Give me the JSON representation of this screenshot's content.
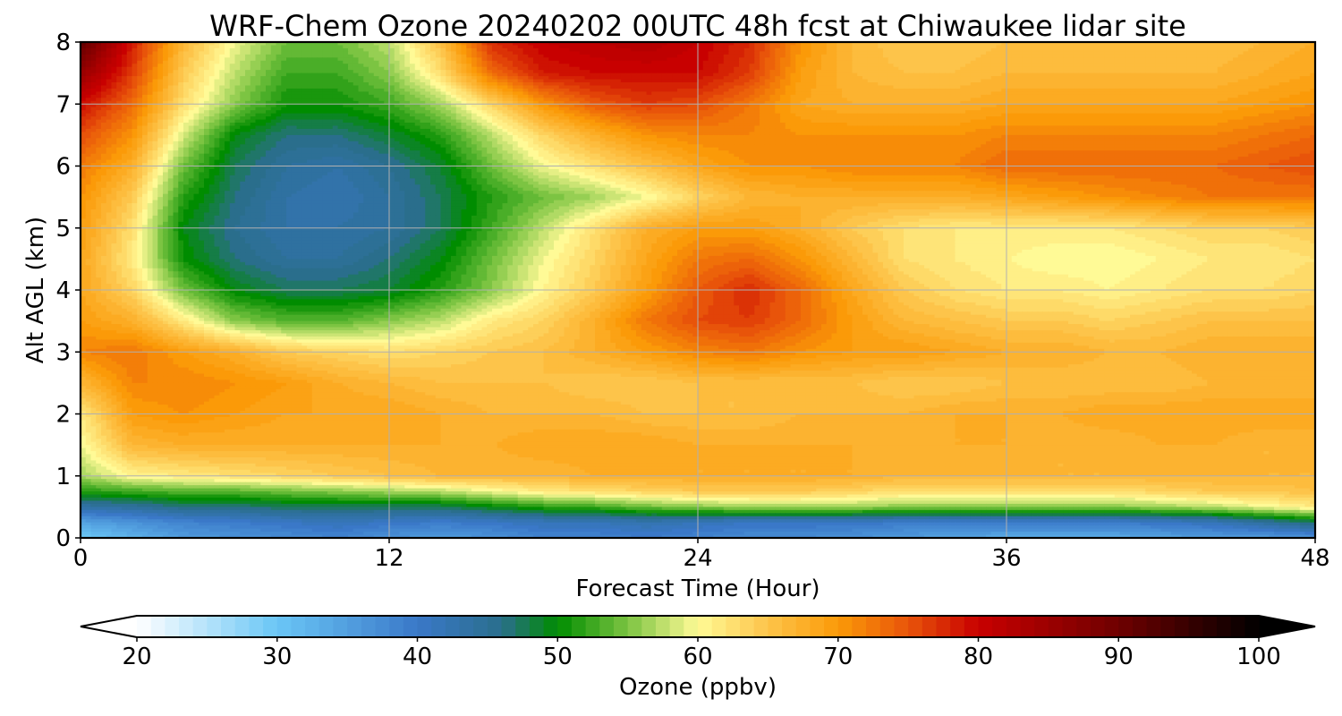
{
  "chart_data": {
    "type": "heatmap",
    "title": "WRF-Chem Ozone  20240202 00UTC 48h fcst at Chiwaukee lidar site",
    "xlabel": "Forecast Time (Hour)",
    "ylabel": "Alt AGL (km)",
    "xlim": [
      0,
      48
    ],
    "ylim": [
      0,
      8
    ],
    "x_ticks": [
      "0",
      "12",
      "24",
      "36",
      "48"
    ],
    "y_ticks": [
      "0",
      "1",
      "2",
      "3",
      "4",
      "5",
      "6",
      "7",
      "8"
    ],
    "grid": true,
    "z_grid": {
      "x": [
        0,
        2,
        4,
        6,
        8,
        10,
        12,
        14,
        16,
        18,
        20,
        22,
        24,
        26,
        28,
        30,
        32,
        34,
        36,
        38,
        40,
        42,
        44,
        46,
        48
      ],
      "y": [
        0,
        0.25,
        0.5,
        0.75,
        1,
        1.5,
        2,
        2.5,
        3,
        3.5,
        4,
        4.5,
        5,
        5.5,
        6,
        6.5,
        7,
        7.5,
        8
      ],
      "values": [
        [
          30,
          33,
          36,
          37,
          38,
          39,
          37,
          36,
          37,
          39,
          39,
          40,
          39,
          38,
          38,
          37,
          36,
          35,
          34,
          34,
          34,
          35,
          36,
          36,
          37
        ],
        [
          35,
          37,
          39,
          40,
          41,
          42,
          41,
          40,
          41,
          42,
          42,
          43,
          42,
          41,
          41,
          41,
          40,
          40,
          40,
          40,
          40,
          41,
          42,
          45,
          48
        ],
        [
          44,
          45,
          47,
          47,
          48,
          48,
          48,
          48,
          50,
          52,
          53,
          55,
          56,
          57,
          57,
          57,
          56,
          56,
          56,
          56,
          56,
          57,
          58,
          60,
          62
        ],
        [
          52,
          53,
          54,
          54,
          55,
          56,
          57,
          58,
          60,
          62,
          63,
          64,
          65,
          65,
          65,
          64,
          63,
          63,
          63,
          63,
          63,
          64,
          65,
          65,
          66
        ],
        [
          57,
          61,
          62,
          63,
          64,
          65,
          66,
          67,
          67,
          67,
          68,
          68,
          68,
          68,
          68,
          68,
          67,
          67,
          67,
          67,
          67,
          67,
          67,
          67,
          67
        ],
        [
          60,
          67,
          68,
          68,
          68,
          68,
          68,
          68,
          68,
          69,
          69,
          69,
          68,
          68,
          68,
          68,
          68,
          68,
          68,
          67,
          67,
          68,
          68,
          67,
          67
        ],
        [
          62,
          70,
          71,
          70,
          69,
          69,
          69,
          68,
          67,
          67,
          67,
          66,
          66,
          66,
          67,
          67,
          67,
          68,
          68,
          68,
          69,
          69,
          69,
          69,
          69
        ],
        [
          67,
          72,
          72,
          71,
          70,
          68,
          67,
          66,
          66,
          66,
          65,
          65,
          66,
          66,
          66,
          66,
          65,
          65,
          66,
          66,
          66,
          66,
          67,
          67,
          67
        ],
        [
          72,
          73,
          70,
          68,
          65,
          64,
          63,
          64,
          65,
          66,
          68,
          70,
          72,
          73,
          71,
          70,
          70,
          69,
          68,
          68,
          67,
          67,
          68,
          68,
          68
        ],
        [
          70,
          68,
          62,
          56,
          54,
          54,
          56,
          58,
          62,
          64,
          68,
          73,
          76,
          77,
          74,
          70,
          67,
          66,
          65,
          65,
          64,
          65,
          66,
          66,
          66
        ],
        [
          69,
          64,
          55,
          50,
          48,
          48,
          49,
          52,
          56,
          61,
          65,
          70,
          75,
          78,
          74,
          69,
          65,
          63,
          62,
          62,
          61,
          62,
          63,
          63,
          64
        ],
        [
          69,
          62,
          51,
          47,
          45,
          45,
          47,
          50,
          55,
          60,
          64,
          69,
          73,
          74,
          71,
          67,
          63,
          62,
          61,
          60,
          60,
          61,
          62,
          62,
          63
        ],
        [
          70,
          63,
          50,
          46,
          44,
          44,
          45,
          48,
          53,
          58,
          63,
          68,
          70,
          70,
          68,
          65,
          63,
          62,
          62,
          62,
          62,
          63,
          64,
          64,
          65
        ],
        [
          71,
          65,
          52,
          47,
          44,
          43,
          45,
          48,
          52,
          55,
          57,
          60,
          64,
          67,
          68,
          68,
          68,
          68,
          69,
          70,
          71,
          72,
          73,
          73,
          73
        ],
        [
          73,
          68,
          55,
          48,
          45,
          44,
          46,
          49,
          55,
          60,
          63,
          66,
          69,
          71,
          71,
          72,
          72,
          72,
          74,
          74,
          74,
          74,
          74,
          75,
          76
        ],
        [
          76,
          71,
          59,
          50,
          47,
          47,
          49,
          52,
          58,
          64,
          68,
          71,
          72,
          72,
          71,
          71,
          71,
          71,
          72,
          72,
          72,
          72,
          72,
          73,
          74
        ],
        [
          80,
          74,
          63,
          56,
          51,
          51,
          53,
          57,
          64,
          71,
          75,
          77,
          76,
          73,
          69,
          68,
          68,
          68,
          69,
          69,
          69,
          69,
          69,
          70,
          71
        ],
        [
          86,
          77,
          65,
          58,
          53,
          53,
          56,
          63,
          74,
          79,
          80,
          80,
          80,
          77,
          70,
          67,
          66,
          66,
          67,
          67,
          67,
          67,
          67,
          68,
          69
        ],
        [
          92,
          79,
          67,
          60,
          55,
          55,
          58,
          66,
          78,
          81,
          82,
          83,
          81,
          78,
          71,
          67,
          65,
          65,
          66,
          66,
          66,
          66,
          66,
          67,
          68
        ]
      ]
    },
    "colorbar": {
      "label": "Ozone  (ppbv)",
      "vmin": 20,
      "vmax": 100,
      "extend": "both",
      "tick_labels": [
        "20",
        "30",
        "40",
        "50",
        "60",
        "70",
        "80",
        "90",
        "100"
      ],
      "stops": [
        {
          "v": 20,
          "color": "#ffffff"
        },
        {
          "v": 30,
          "color": "#6ac6f6"
        },
        {
          "v": 40,
          "color": "#3a78c8"
        },
        {
          "v": 46,
          "color": "#2a6e8c"
        },
        {
          "v": 50,
          "color": "#008c00"
        },
        {
          "v": 55,
          "color": "#7cc442"
        },
        {
          "v": 60,
          "color": "#fffa96"
        },
        {
          "v": 65,
          "color": "#fdc44a"
        },
        {
          "v": 70,
          "color": "#fb9a08"
        },
        {
          "v": 75,
          "color": "#e8540a"
        },
        {
          "v": 80,
          "color": "#c80000"
        },
        {
          "v": 90,
          "color": "#6e0000"
        },
        {
          "v": 100,
          "color": "#000000"
        }
      ]
    }
  }
}
